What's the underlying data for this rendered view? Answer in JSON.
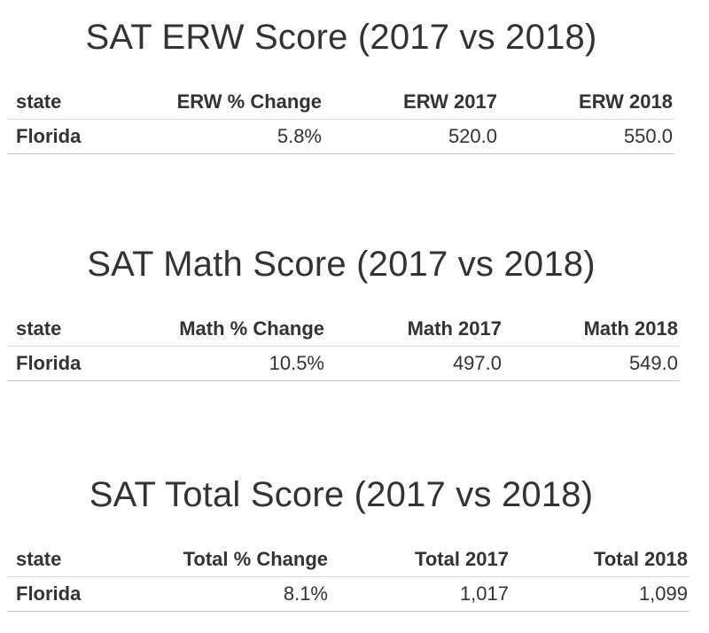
{
  "chart_data": [
    {
      "type": "table",
      "title": "SAT ERW Score (2017 vs 2018)",
      "columns": [
        "state",
        "ERW % Change",
        "ERW 2017",
        "ERW 2018"
      ],
      "rows": [
        [
          "Florida",
          "5.8%",
          "520.0",
          "550.0"
        ]
      ]
    },
    {
      "type": "table",
      "title": "SAT Math Score  (2017 vs 2018)",
      "columns": [
        "state",
        "Math % Change",
        "Math 2017",
        "Math 2018"
      ],
      "rows": [
        [
          "Florida",
          "10.5%",
          "497.0",
          "549.0"
        ]
      ]
    },
    {
      "type": "table",
      "title": "SAT Total Score (2017 vs 2018)",
      "columns": [
        "state",
        "Total % Change",
        "Total 2017",
        "Total 2018"
      ],
      "rows": [
        [
          "Florida",
          "8.1%",
          "1,017",
          "1,099"
        ]
      ]
    }
  ]
}
